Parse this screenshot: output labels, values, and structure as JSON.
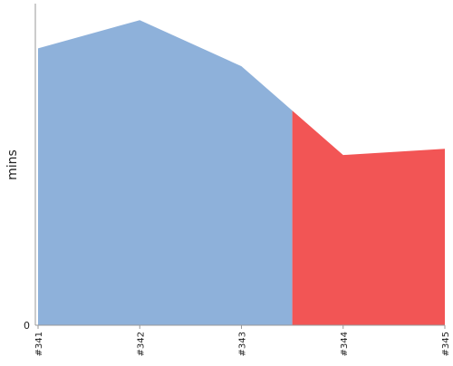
{
  "chart_data": {
    "type": "area",
    "ylabel": "mins",
    "yticks": [
      "0"
    ],
    "categories": [
      "#341",
      "#342",
      "#343",
      "#344",
      "#345"
    ],
    "x": [
      0,
      1,
      2,
      3,
      4
    ],
    "values": [
      9.73,
      10.72,
      9.1,
      5.98,
      6.2
    ],
    "ylim": [
      0,
      11.3
    ],
    "grid": false,
    "segments": [
      {
        "from": 0,
        "to": 2.5,
        "color": "#8eb1da"
      },
      {
        "from": 2.5,
        "to": 4,
        "color": "#f25555"
      }
    ]
  }
}
